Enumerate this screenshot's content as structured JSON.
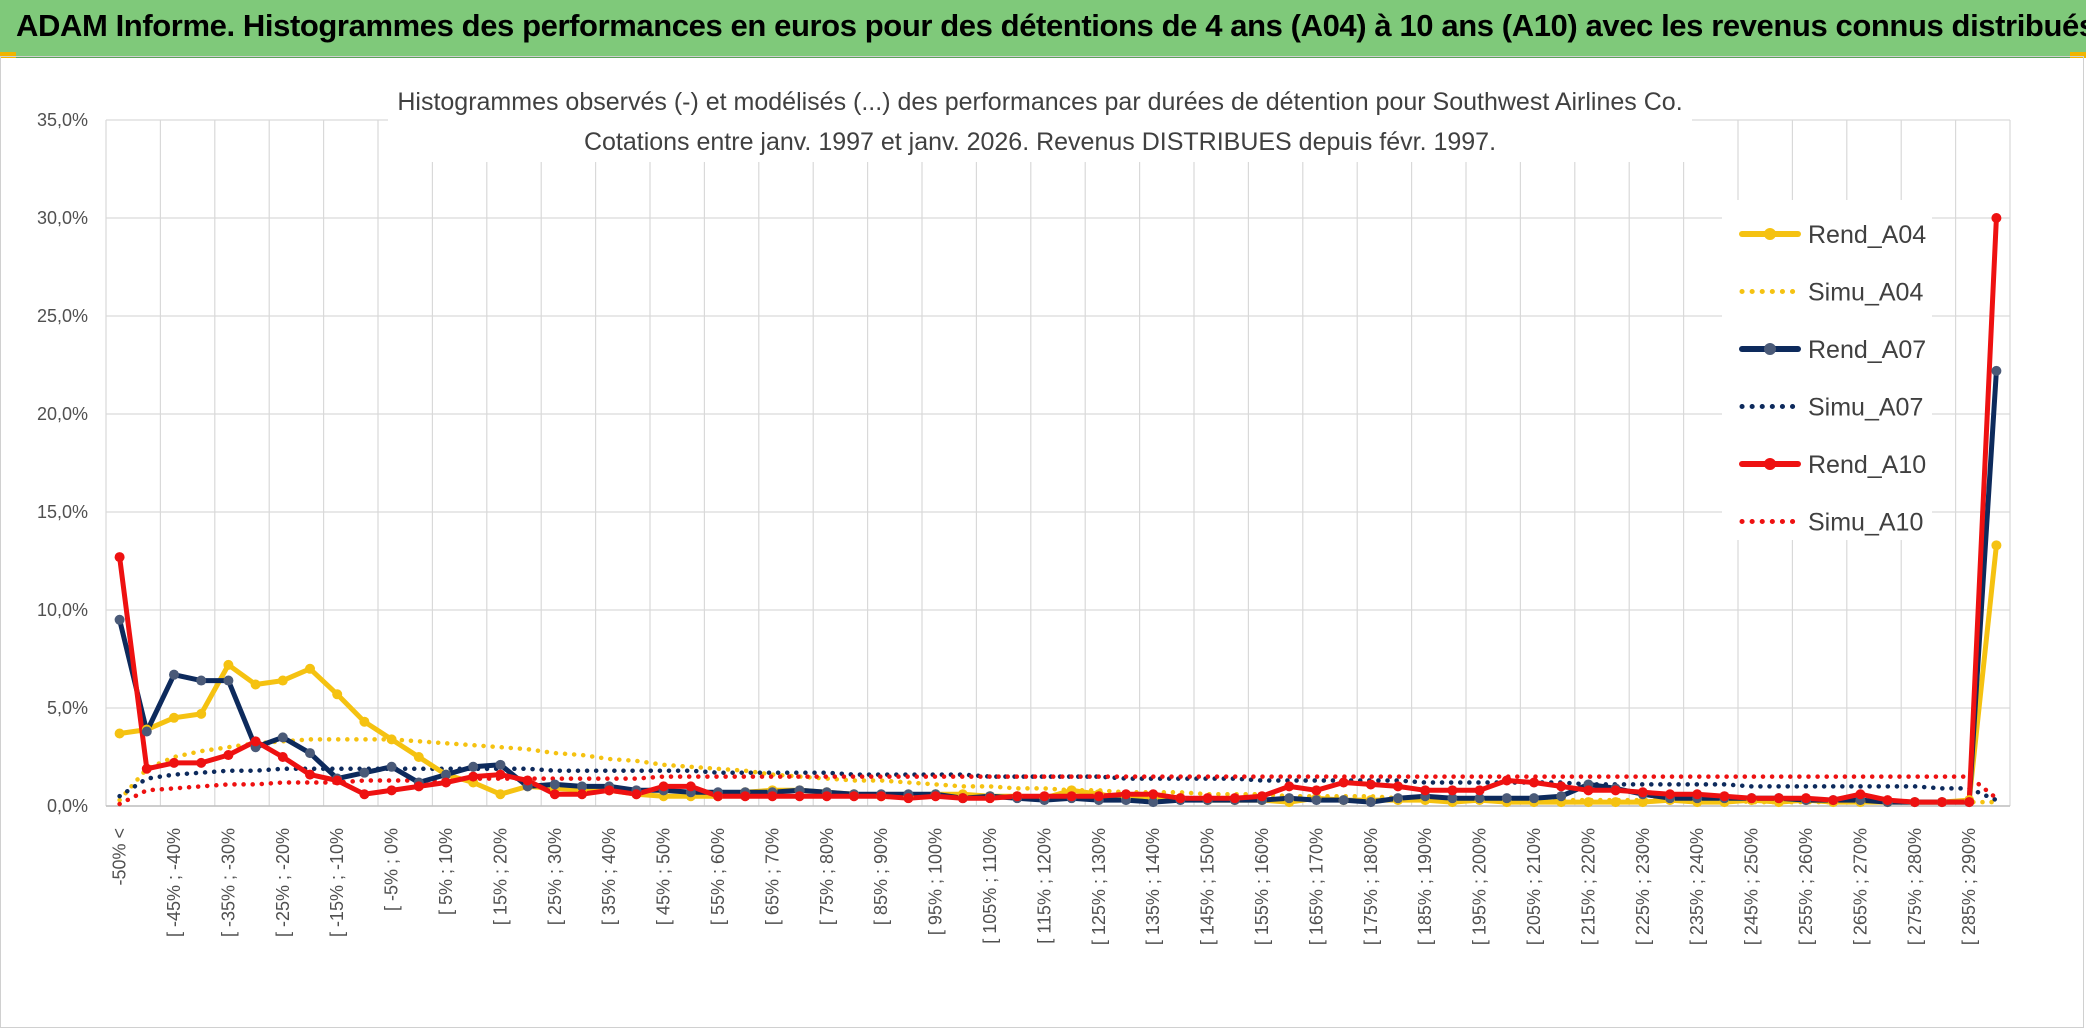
{
  "header": {
    "title": "ADAM Informe. Histogrammes des performances en euros pour des détentions de 4 ans (A04) à 10 ans (A10) avec les revenus connus distribués"
  },
  "colors": {
    "header_bg": "#7fc97a",
    "a04": "#f5c211",
    "a07": "#0d2a5c",
    "a10": "#ee1111",
    "grid": "#d9d9d9"
  },
  "chart_data": {
    "type": "line",
    "title_line1": "Histogrammes observés (-) et modélisés (...) des performances par durées de détention pour Southwest Airlines Co.",
    "title_line2": "Cotations entre janv. 1997 et janv. 2026. Revenus DISTRIBUES depuis févr. 1997.",
    "xlabel": "",
    "ylabel": "",
    "ylim": [
      0,
      35
    ],
    "ytick_labels": [
      "0,0%",
      "5,0%",
      "10,0%",
      "15,0%",
      "20,0%",
      "25,0%",
      "30,0%",
      "35,0%"
    ],
    "x_tick_labels": [
      "-50% <",
      "[ -45% ; -40%",
      "[ -35% ; -30%",
      "[ -25% ; -20%",
      "[ -15% ; -10%",
      "[ -5% ; 0%",
      "[ 5% ; 10%",
      "[ 15% ; 20%",
      "[ 25% ; 30%",
      "[ 35% ; 40%",
      "[ 45% ; 50%",
      "[ 55% ; 60%",
      "[ 65% ; 70%",
      "[ 75% ; 80%",
      "[ 85% ; 90%",
      "[ 95% ; 100%",
      "[ 105% ; 110%",
      "[ 115% ; 120%",
      "[ 125% ; 130%",
      "[ 135% ; 140%",
      "[ 145% ; 150%",
      "[ 155% ; 160%",
      "[ 165% ; 170%",
      "[ 175% ; 180%",
      "[ 185% ; 190%",
      "[ 195% ; 200%",
      "[ 205% ; 210%",
      "[ 215% ; 220%",
      "[ 225% ; 230%",
      "[ 235% ; 240%",
      "[ 245% ; 250%",
      "[ 255% ; 260%",
      "[ 265% ; 270%",
      "[ 275% ; 280%",
      "[ 285% ; 290%"
    ],
    "n_categories": 70,
    "series": [
      {
        "name": "Rend_A04",
        "style": "solid",
        "color": "#f5c211",
        "values": [
          3.7,
          3.9,
          4.5,
          4.7,
          7.2,
          6.2,
          6.4,
          7.0,
          5.7,
          4.3,
          3.4,
          2.5,
          1.6,
          1.2,
          0.6,
          1.0,
          0.9,
          0.8,
          0.8,
          0.6,
          0.5,
          0.5,
          0.5,
          0.7,
          0.8,
          0.8,
          0.7,
          0.6,
          0.5,
          0.5,
          0.6,
          0.6,
          0.5,
          0.5,
          0.4,
          0.8,
          0.6,
          0.4,
          0.4,
          0.4,
          0.3,
          0.3,
          0.3,
          0.2,
          0.4,
          0.3,
          0.3,
          0.3,
          0.3,
          0.2,
          0.3,
          0.2,
          0.2,
          0.2,
          0.2,
          0.2,
          0.2,
          0.3,
          0.2,
          0.2,
          0.3,
          0.2,
          0.3,
          0.2,
          0.2,
          0.2,
          0.2,
          0.2,
          0.3,
          13.3
        ]
      },
      {
        "name": "Simu_A04",
        "style": "dotted",
        "color": "#f5c211",
        "values": [
          0.3,
          1.9,
          2.5,
          2.8,
          3.0,
          3.2,
          3.3,
          3.4,
          3.4,
          3.4,
          3.4,
          3.3,
          3.2,
          3.1,
          3.0,
          2.9,
          2.7,
          2.6,
          2.4,
          2.3,
          2.1,
          2.0,
          1.9,
          1.8,
          1.6,
          1.5,
          1.4,
          1.3,
          1.3,
          1.2,
          1.1,
          1.0,
          1.0,
          0.9,
          0.9,
          0.8,
          0.8,
          0.7,
          0.7,
          0.7,
          0.6,
          0.6,
          0.6,
          0.5,
          0.5,
          0.5,
          0.5,
          0.4,
          0.4,
          0.4,
          0.4,
          0.4,
          0.3,
          0.3,
          0.3,
          0.3,
          0.3,
          0.3,
          0.3,
          0.3,
          0.2,
          0.2,
          0.2,
          0.2,
          0.2,
          0.2,
          0.2,
          0.2,
          0.2,
          0.2
        ]
      },
      {
        "name": "Rend_A07",
        "style": "solid",
        "color": "#0d2a5c",
        "values": [
          9.5,
          3.8,
          6.7,
          6.4,
          6.4,
          3.0,
          3.5,
          2.7,
          1.4,
          1.7,
          2.0,
          1.2,
          1.6,
          2.0,
          2.1,
          1.0,
          1.1,
          1.0,
          1.0,
          0.8,
          0.8,
          0.7,
          0.7,
          0.7,
          0.7,
          0.8,
          0.7,
          0.6,
          0.6,
          0.6,
          0.6,
          0.4,
          0.5,
          0.4,
          0.3,
          0.4,
          0.3,
          0.3,
          0.2,
          0.3,
          0.3,
          0.3,
          0.3,
          0.4,
          0.3,
          0.3,
          0.2,
          0.4,
          0.5,
          0.4,
          0.4,
          0.4,
          0.4,
          0.5,
          1.1,
          0.9,
          0.6,
          0.4,
          0.4,
          0.4,
          0.4,
          0.4,
          0.3,
          0.3,
          0.3,
          0.2,
          0.2,
          0.2,
          0.2,
          22.2
        ]
      },
      {
        "name": "Simu_A07",
        "style": "dotted",
        "color": "#0d2a5c",
        "values": [
          0.5,
          1.4,
          1.6,
          1.7,
          1.8,
          1.8,
          1.9,
          1.9,
          1.9,
          1.9,
          1.9,
          1.9,
          1.9,
          1.9,
          1.9,
          1.9,
          1.8,
          1.8,
          1.8,
          1.8,
          1.8,
          1.8,
          1.7,
          1.7,
          1.7,
          1.7,
          1.7,
          1.6,
          1.6,
          1.6,
          1.6,
          1.6,
          1.5,
          1.5,
          1.5,
          1.5,
          1.5,
          1.4,
          1.4,
          1.4,
          1.4,
          1.4,
          1.3,
          1.3,
          1.3,
          1.3,
          1.3,
          1.3,
          1.2,
          1.2,
          1.2,
          1.2,
          1.2,
          1.2,
          1.1,
          1.1,
          1.1,
          1.1,
          1.1,
          1.1,
          1.0,
          1.0,
          1.0,
          1.0,
          1.0,
          1.0,
          1.0,
          0.9,
          0.9,
          0.3
        ]
      },
      {
        "name": "Rend_A10",
        "style": "solid",
        "color": "#ee1111",
        "values": [
          12.7,
          1.9,
          2.2,
          2.2,
          2.6,
          3.3,
          2.5,
          1.6,
          1.3,
          0.6,
          0.8,
          1.0,
          1.2,
          1.5,
          1.6,
          1.3,
          0.6,
          0.6,
          0.8,
          0.6,
          1.0,
          1.0,
          0.5,
          0.5,
          0.5,
          0.5,
          0.5,
          0.5,
          0.5,
          0.4,
          0.5,
          0.4,
          0.4,
          0.5,
          0.5,
          0.5,
          0.5,
          0.6,
          0.6,
          0.4,
          0.4,
          0.4,
          0.5,
          1.0,
          0.8,
          1.2,
          1.1,
          1.0,
          0.8,
          0.8,
          0.8,
          1.3,
          1.2,
          1.0,
          0.8,
          0.8,
          0.7,
          0.6,
          0.6,
          0.5,
          0.4,
          0.4,
          0.4,
          0.3,
          0.6,
          0.3,
          0.2,
          0.2,
          0.2,
          30.0
        ]
      },
      {
        "name": "Simu_A10",
        "style": "dotted",
        "color": "#ee1111",
        "values": [
          0.1,
          0.8,
          0.9,
          1.0,
          1.1,
          1.1,
          1.2,
          1.2,
          1.2,
          1.3,
          1.3,
          1.3,
          1.3,
          1.4,
          1.4,
          1.4,
          1.4,
          1.4,
          1.4,
          1.4,
          1.5,
          1.5,
          1.5,
          1.5,
          1.5,
          1.5,
          1.5,
          1.5,
          1.5,
          1.5,
          1.5,
          1.5,
          1.5,
          1.5,
          1.5,
          1.5,
          1.5,
          1.5,
          1.5,
          1.5,
          1.5,
          1.5,
          1.5,
          1.5,
          1.5,
          1.5,
          1.5,
          1.5,
          1.5,
          1.5,
          1.5,
          1.5,
          1.5,
          1.5,
          1.5,
          1.5,
          1.5,
          1.5,
          1.5,
          1.5,
          1.5,
          1.5,
          1.5,
          1.5,
          1.5,
          1.5,
          1.5,
          1.5,
          1.5,
          0.4
        ]
      }
    ],
    "legend": {
      "position": "right",
      "entries": [
        "Rend_A04",
        "Simu_A04",
        "Rend_A07",
        "Simu_A07",
        "Rend_A10",
        "Simu_A10"
      ]
    },
    "grid": true
  }
}
